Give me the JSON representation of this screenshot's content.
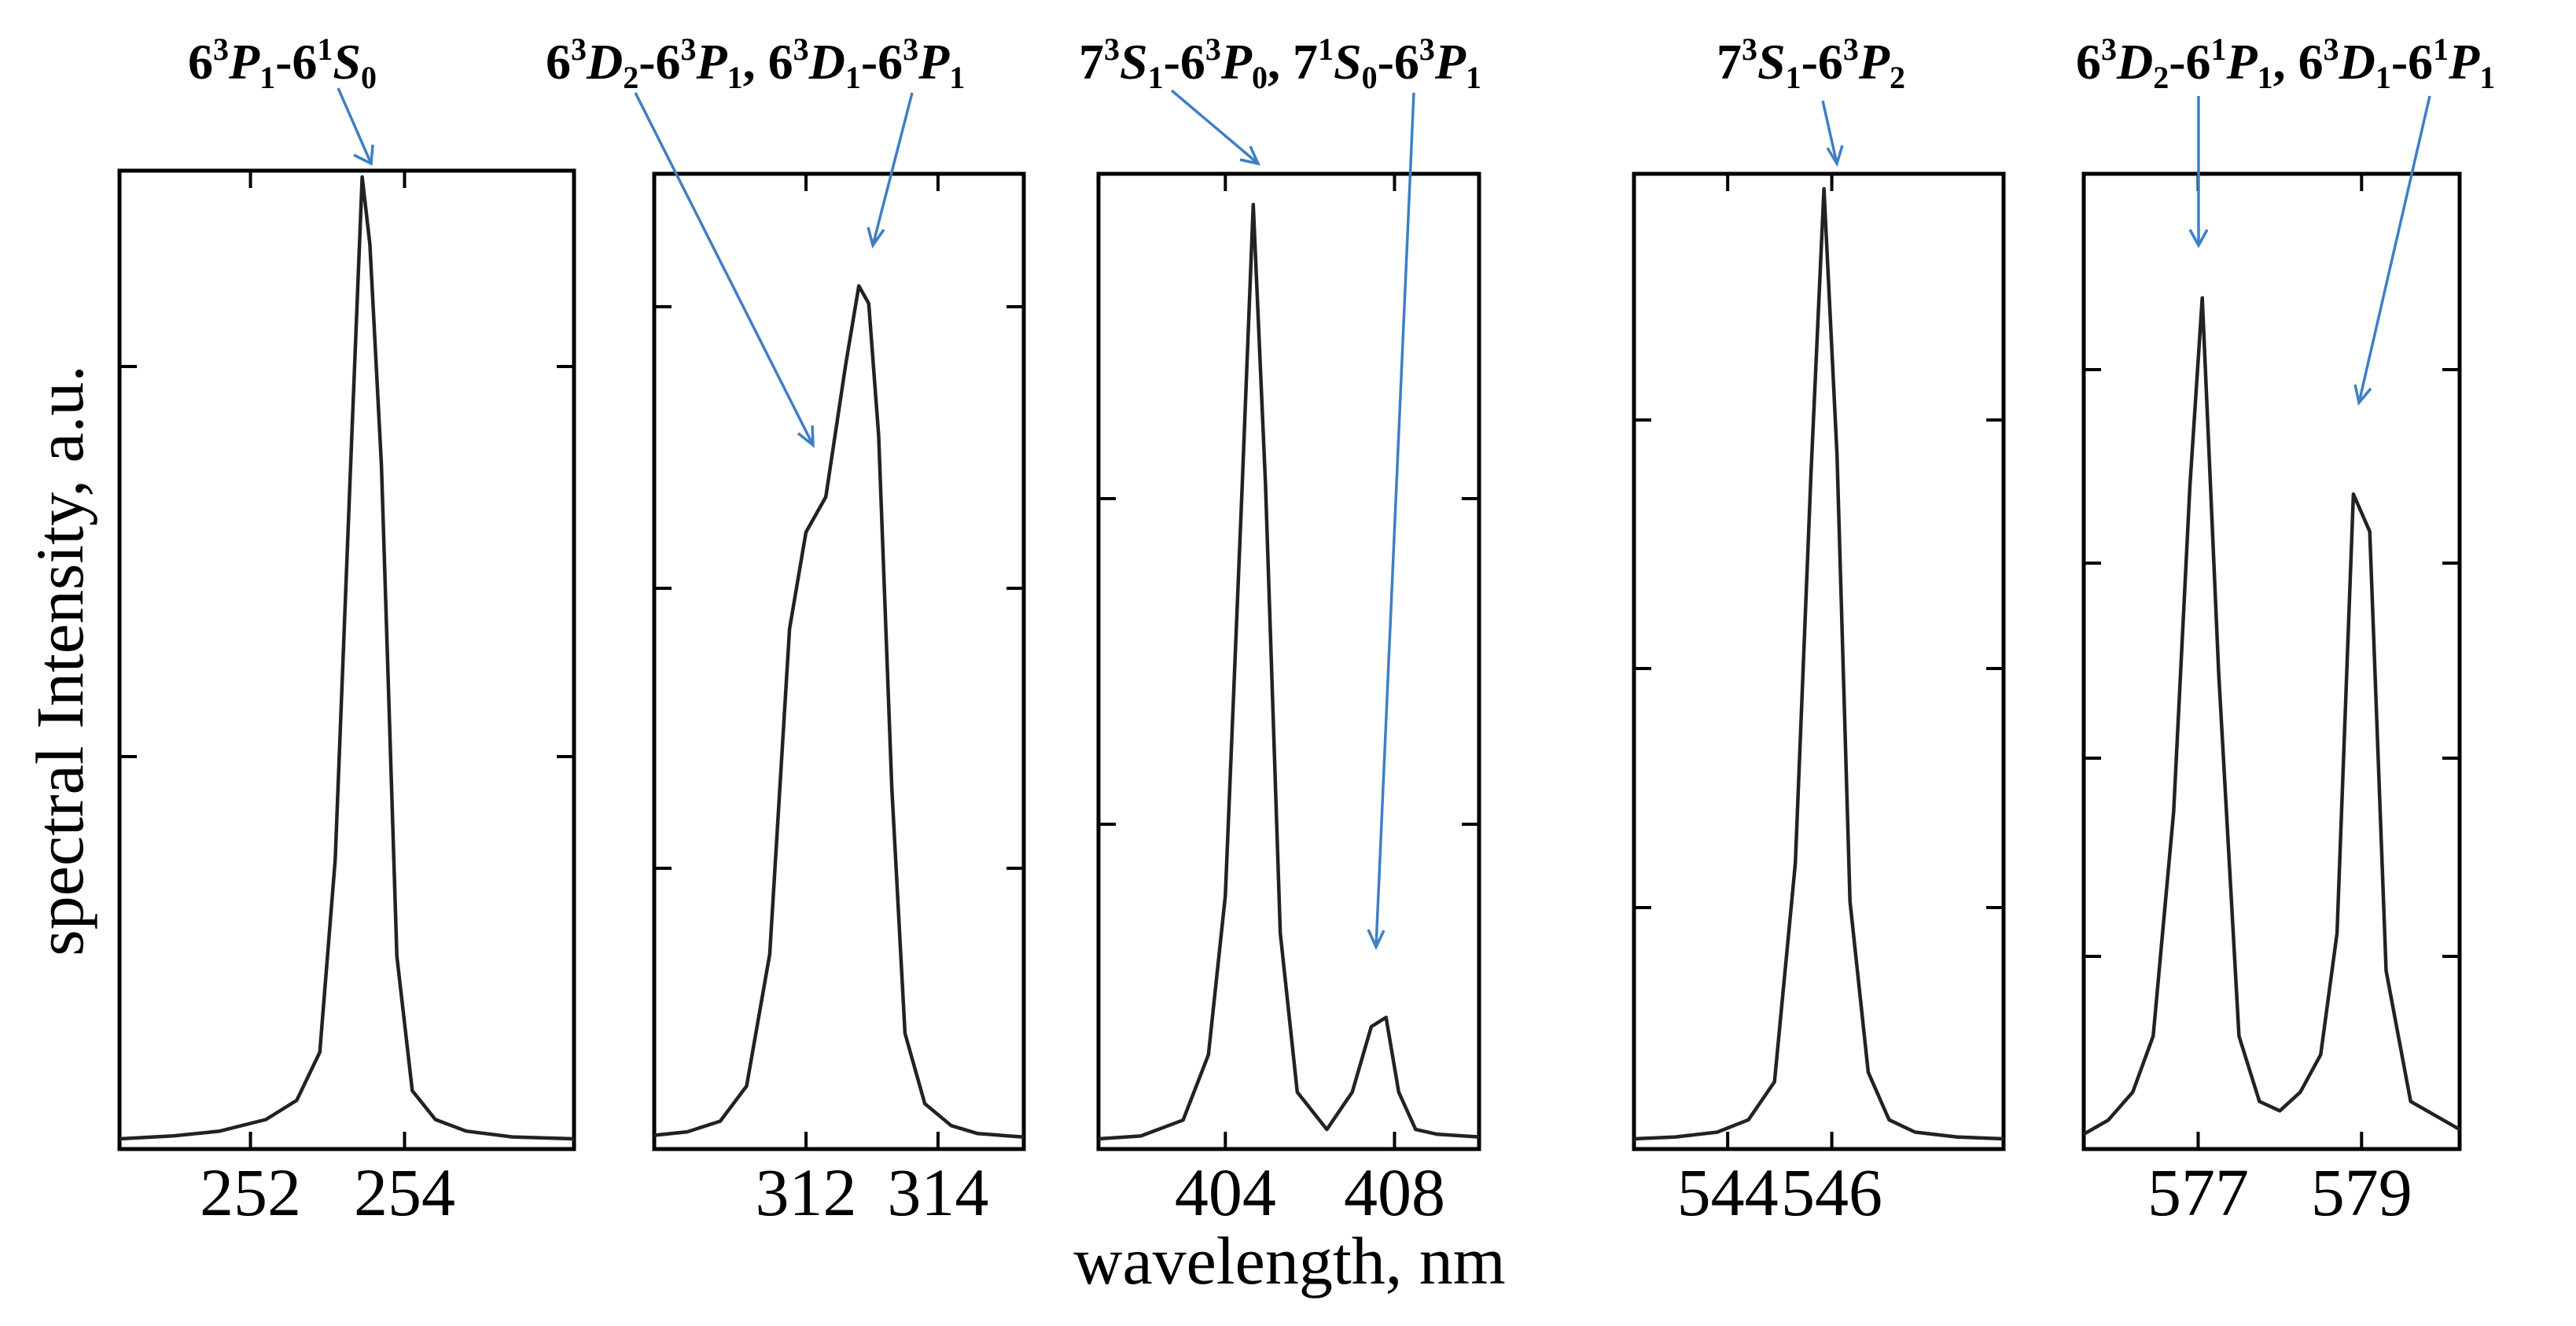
{
  "chart_data": {
    "type": "line",
    "xlabel": "wavelength, nm",
    "ylabel": "spectral Intensity, a.u.",
    "colors": {
      "curve": "#222222",
      "arrow": "#3f7fc4"
    },
    "panels": [
      {
        "xlim": [
          250.3,
          256.2
        ],
        "xticks": [
          252,
          254
        ],
        "x": [
          250.3,
          251.0,
          251.6,
          252.2,
          252.6,
          252.9,
          253.1,
          253.3,
          253.45,
          253.55,
          253.7,
          253.9,
          254.1,
          254.4,
          254.8,
          255.4,
          256.2
        ],
        "y": [
          0.0,
          0.003,
          0.008,
          0.02,
          0.04,
          0.09,
          0.29,
          0.7,
          1.0,
          0.93,
          0.7,
          0.19,
          0.05,
          0.02,
          0.008,
          0.002,
          0.0
        ],
        "annotations": [
          {
            "name": "6³P₁-6¹S₀",
            "peaks": [
              253.45
            ]
          }
        ]
      },
      {
        "xlim": [
          309.7,
          315.3
        ],
        "xticks": [
          312,
          314
        ],
        "x": [
          309.7,
          310.2,
          310.7,
          311.1,
          311.45,
          311.75,
          312.0,
          312.3,
          312.6,
          312.8,
          312.95,
          313.1,
          313.3,
          313.5,
          313.8,
          314.2,
          314.6,
          315.3
        ],
        "y": [
          0.004,
          0.008,
          0.02,
          0.06,
          0.21,
          0.58,
          0.69,
          0.73,
          0.88,
          0.97,
          0.95,
          0.8,
          0.4,
          0.12,
          0.04,
          0.015,
          0.006,
          0.002
        ],
        "annotations": [
          {
            "name": "6³D₂-6³P₁",
            "peaks": [
              312.57
            ]
          },
          {
            "name": "6³D₁-6³P₁",
            "peaks": [
              313.18
            ]
          }
        ]
      },
      {
        "xlim": [
          401.0,
          410.0
        ],
        "xticks": [
          404,
          408
        ],
        "x": [
          401.0,
          402.0,
          403.0,
          403.6,
          404.0,
          404.4,
          404.66,
          404.95,
          405.3,
          405.7,
          406.4,
          407.0,
          407.45,
          407.8,
          408.1,
          408.5,
          409.0,
          410.0
        ],
        "y": [
          0.0,
          0.003,
          0.02,
          0.09,
          0.26,
          0.7,
          1.0,
          0.7,
          0.22,
          0.05,
          0.01,
          0.05,
          0.12,
          0.13,
          0.05,
          0.01,
          0.005,
          0.002
        ],
        "annotations": [
          {
            "name": "7³S₁-6³P₀",
            "peaks": [
              404.66
            ]
          },
          {
            "name": "7¹S₀-6³P₁",
            "peaks": [
              407.78
            ]
          }
        ]
      },
      {
        "xlim": [
          542.2,
          549.3
        ],
        "xticks": [
          544,
          546
        ],
        "x": [
          542.2,
          543.0,
          543.8,
          544.4,
          544.9,
          545.3,
          545.6,
          545.85,
          546.1,
          546.35,
          546.7,
          547.1,
          547.6,
          548.4,
          549.3
        ],
        "y": [
          0.0,
          0.002,
          0.007,
          0.02,
          0.06,
          0.29,
          0.7,
          1.0,
          0.72,
          0.25,
          0.07,
          0.02,
          0.007,
          0.002,
          0.0
        ],
        "annotations": [
          {
            "name": "7³S₁-6³P₂",
            "peaks": [
              545.85
            ]
          }
        ]
      },
      {
        "xlim": [
          575.6,
          580.2
        ],
        "xticks": [
          577,
          579
        ],
        "x": [
          575.6,
          575.9,
          576.2,
          576.45,
          576.7,
          576.9,
          577.05,
          577.25,
          577.5,
          577.75,
          578.0,
          578.25,
          578.5,
          578.7,
          578.9,
          579.1,
          579.3,
          579.6,
          580.0,
          580.2
        ],
        "y": [
          0.005,
          0.02,
          0.05,
          0.11,
          0.35,
          0.7,
          0.9,
          0.5,
          0.11,
          0.04,
          0.03,
          0.05,
          0.09,
          0.22,
          0.69,
          0.65,
          0.18,
          0.04,
          0.02,
          0.01
        ],
        "annotations": [
          {
            "name": "6³D₂-6¹P₁",
            "peaks": [
              576.96
            ]
          },
          {
            "name": "6³D₁-6¹P₁",
            "peaks": [
              579.07
            ]
          }
        ]
      }
    ]
  }
}
